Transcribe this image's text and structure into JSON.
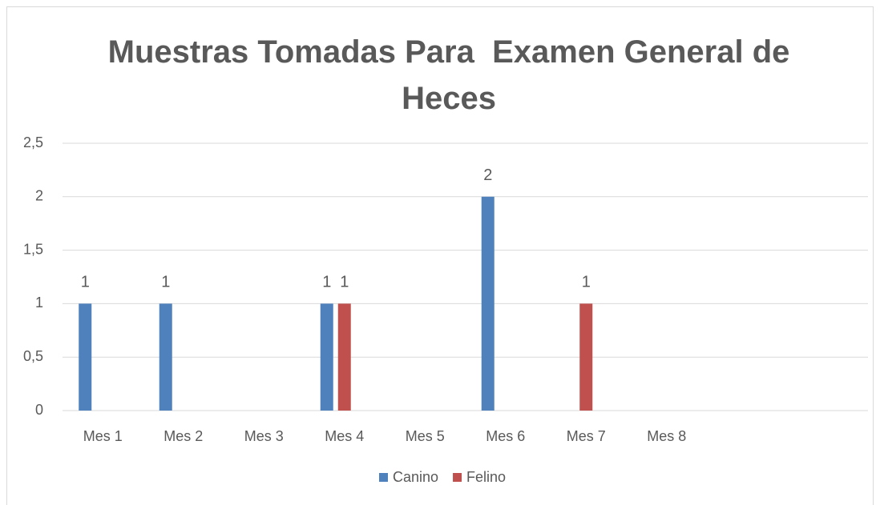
{
  "chart_data": {
    "type": "bar",
    "title": "Muestras Tomadas Para  Examen General de Heces",
    "categories": [
      "Mes 1",
      "Mes 2",
      "Mes 3",
      "Mes 4",
      "Mes 5",
      "Mes 6",
      "Mes 7",
      "Mes 8",
      null,
      null
    ],
    "series": [
      {
        "name": "Canino",
        "color": "#4f81bd",
        "values": [
          1,
          1,
          null,
          1,
          null,
          2,
          null,
          null,
          null,
          null
        ]
      },
      {
        "name": "Felino",
        "color": "#c0504d",
        "values": [
          null,
          null,
          null,
          1,
          null,
          null,
          1,
          null,
          null,
          null
        ]
      }
    ],
    "ylim": [
      0,
      2.5
    ],
    "yticks": [
      0,
      {
        "value": 0.5,
        "label": "0,5"
      },
      1,
      {
        "value": 1.5,
        "label": "1,5"
      },
      2,
      {
        "value": 2.5,
        "label": "2,5"
      }
    ],
    "grid": true,
    "legend": "bottom"
  }
}
